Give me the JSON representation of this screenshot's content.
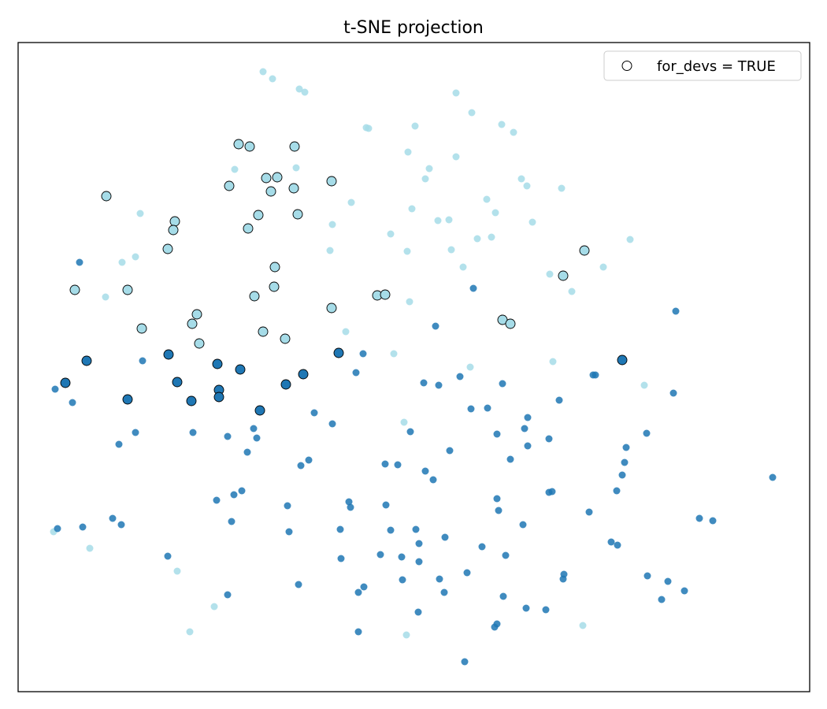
{
  "chart_data": {
    "type": "scatter",
    "title": "t-SNE projection",
    "xlabel": "",
    "ylabel": "",
    "xlim": [
      23,
      1028
    ],
    "ylim": [
      22,
      846
    ],
    "axis_ticks": false,
    "grid": false,
    "legend": {
      "placement": "top-right",
      "entries": [
        "for_devs = TRUE"
      ]
    },
    "colors": {
      "cluster_light": "#a6dce8",
      "cluster_dark": "#1f77b4",
      "highlight_edge": "#000000"
    },
    "groups": [
      {
        "cluster": "light",
        "for_devs": false,
        "points": [
          [
            334,
            809
          ],
          [
            346,
            800
          ],
          [
            380,
            787
          ],
          [
            387,
            783
          ],
          [
            579,
            782
          ],
          [
            599,
            757
          ],
          [
            637,
            742
          ],
          [
            652,
            732
          ],
          [
            465,
            738
          ],
          [
            468,
            737
          ],
          [
            527,
            740
          ],
          [
            518,
            707
          ],
          [
            545,
            686
          ],
          [
            579,
            701
          ],
          [
            540,
            673
          ],
          [
            662,
            673
          ],
          [
            669,
            664
          ],
          [
            713,
            661
          ],
          [
            298,
            685
          ],
          [
            376,
            687
          ],
          [
            178,
            629
          ],
          [
            446,
            643
          ],
          [
            523,
            635
          ],
          [
            556,
            620
          ],
          [
            570,
            621
          ],
          [
            618,
            647
          ],
          [
            629,
            630
          ],
          [
            676,
            618
          ],
          [
            422,
            615
          ],
          [
            496,
            603
          ],
          [
            606,
            597
          ],
          [
            624,
            599
          ],
          [
            800,
            596
          ],
          [
            155,
            567
          ],
          [
            172,
            574
          ],
          [
            419,
            582
          ],
          [
            517,
            581
          ],
          [
            573,
            583
          ],
          [
            588,
            561
          ],
          [
            698,
            552
          ],
          [
            766,
            561
          ],
          [
            726,
            530
          ],
          [
            134,
            523
          ],
          [
            520,
            517
          ],
          [
            439,
            479
          ],
          [
            500,
            451
          ],
          [
            702,
            441
          ],
          [
            597,
            434
          ],
          [
            818,
            411
          ],
          [
            513,
            364
          ],
          [
            68,
            225
          ],
          [
            114,
            204
          ],
          [
            225,
            175
          ],
          [
            272,
            130
          ],
          [
            241,
            98
          ],
          [
            516,
            94
          ],
          [
            740,
            106
          ]
        ]
      },
      {
        "cluster": "dark",
        "for_devs": false,
        "points": [
          [
            101,
            567
          ],
          [
            601,
            534
          ],
          [
            553,
            486
          ],
          [
            858,
            505
          ],
          [
            181,
            442
          ],
          [
            461,
            451
          ],
          [
            452,
            427
          ],
          [
            538,
            414
          ],
          [
            557,
            411
          ],
          [
            584,
            422
          ],
          [
            638,
            413
          ],
          [
            753,
            424
          ],
          [
            756,
            424
          ],
          [
            855,
            401
          ],
          [
            70,
            406
          ],
          [
            92,
            389
          ],
          [
            399,
            376
          ],
          [
            422,
            362
          ],
          [
            598,
            381
          ],
          [
            619,
            382
          ],
          [
            670,
            370
          ],
          [
            710,
            392
          ],
          [
            521,
            352
          ],
          [
            631,
            349
          ],
          [
            666,
            356
          ],
          [
            697,
            343
          ],
          [
            670,
            334
          ],
          [
            795,
            332
          ],
          [
            821,
            350
          ],
          [
            172,
            351
          ],
          [
            151,
            336
          ],
          [
            245,
            351
          ],
          [
            289,
            346
          ],
          [
            322,
            356
          ],
          [
            326,
            344
          ],
          [
            314,
            326
          ],
          [
            571,
            328
          ],
          [
            648,
            317
          ],
          [
            793,
            313
          ],
          [
            790,
            297
          ],
          [
            382,
            309
          ],
          [
            392,
            316
          ],
          [
            489,
            311
          ],
          [
            505,
            310
          ],
          [
            540,
            302
          ],
          [
            550,
            291
          ],
          [
            981,
            294
          ],
          [
            783,
            277
          ],
          [
            697,
            275
          ],
          [
            701,
            276
          ],
          [
            631,
            267
          ],
          [
            633,
            252
          ],
          [
            748,
            250
          ],
          [
            664,
            234
          ],
          [
            888,
            242
          ],
          [
            905,
            239
          ],
          [
            275,
            265
          ],
          [
            297,
            272
          ],
          [
            307,
            277
          ],
          [
            294,
            238
          ],
          [
            365,
            258
          ],
          [
            367,
            225
          ],
          [
            443,
            263
          ],
          [
            445,
            256
          ],
          [
            490,
            259
          ],
          [
            432,
            228
          ],
          [
            496,
            227
          ],
          [
            528,
            228
          ],
          [
            565,
            218
          ],
          [
            532,
            210
          ],
          [
            612,
            206
          ],
          [
            642,
            195
          ],
          [
            776,
            212
          ],
          [
            784,
            208
          ],
          [
            73,
            229
          ],
          [
            105,
            231
          ],
          [
            143,
            242
          ],
          [
            154,
            234
          ],
          [
            213,
            194
          ],
          [
            433,
            191
          ],
          [
            483,
            196
          ],
          [
            510,
            193
          ],
          [
            532,
            187
          ],
          [
            593,
            173
          ],
          [
            716,
            171
          ],
          [
            715,
            165
          ],
          [
            822,
            169
          ],
          [
            848,
            162
          ],
          [
            869,
            150
          ],
          [
            840,
            139
          ],
          [
            379,
            158
          ],
          [
            462,
            155
          ],
          [
            455,
            148
          ],
          [
            511,
            164
          ],
          [
            558,
            165
          ],
          [
            564,
            148
          ],
          [
            639,
            143
          ],
          [
            668,
            128
          ],
          [
            693,
            126
          ],
          [
            289,
            145
          ],
          [
            531,
            123
          ],
          [
            628,
            104
          ],
          [
            631,
            108
          ],
          [
            455,
            98
          ],
          [
            590,
            60
          ]
        ]
      },
      {
        "cluster": "light",
        "for_devs": true,
        "points": [
          [
            303,
            717
          ],
          [
            317,
            714
          ],
          [
            374,
            714
          ],
          [
            338,
            674
          ],
          [
            352,
            675
          ],
          [
            344,
            657
          ],
          [
            373,
            661
          ],
          [
            291,
            664
          ],
          [
            421,
            670
          ],
          [
            135,
            651
          ],
          [
            222,
            619
          ],
          [
            220,
            608
          ],
          [
            328,
            627
          ],
          [
            378,
            628
          ],
          [
            315,
            610
          ],
          [
            213,
            584
          ],
          [
            349,
            561
          ],
          [
            95,
            532
          ],
          [
            162,
            532
          ],
          [
            348,
            536
          ],
          [
            323,
            524
          ],
          [
            479,
            525
          ],
          [
            489,
            526
          ],
          [
            742,
            582
          ],
          [
            715,
            550
          ],
          [
            421,
            509
          ],
          [
            250,
            501
          ],
          [
            244,
            489
          ],
          [
            180,
            483
          ],
          [
            334,
            479
          ],
          [
            362,
            470
          ],
          [
            253,
            464
          ],
          [
            638,
            494
          ],
          [
            648,
            489
          ]
        ]
      },
      {
        "cluster": "dark",
        "for_devs": true,
        "points": [
          [
            110,
            442
          ],
          [
            214,
            450
          ],
          [
            276,
            438
          ],
          [
            305,
            431
          ],
          [
            430,
            452
          ],
          [
            385,
            425
          ],
          [
            790,
            443
          ],
          [
            83,
            414
          ],
          [
            225,
            415
          ],
          [
            363,
            412
          ],
          [
            278,
            405
          ],
          [
            278,
            396
          ],
          [
            162,
            393
          ],
          [
            243,
            391
          ],
          [
            330,
            379
          ]
        ]
      }
    ]
  }
}
